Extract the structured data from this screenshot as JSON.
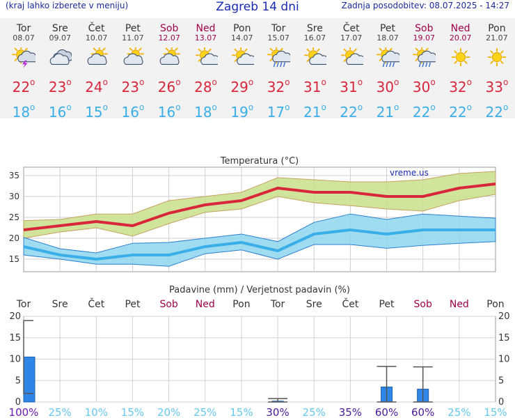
{
  "header": {
    "menu_hint": "(kraj lahko izberete v meniju)",
    "title": "Zagreb 14 dni",
    "updated": "Zadnja posodobitev: 08.07.2025 - 14:27"
  },
  "days": [
    {
      "name": "Tor",
      "date": "08.07",
      "weekend": false,
      "icon": "thunderstorm-sun-icon",
      "tmax": "22",
      "tmin": "18"
    },
    {
      "name": "Sre",
      "date": "09.07",
      "weekend": false,
      "icon": "cloudy-icon",
      "tmax": "23",
      "tmin": "16"
    },
    {
      "name": "Čet",
      "date": "10.07",
      "weekend": false,
      "icon": "partly-cloudy-icon",
      "tmax": "24",
      "tmin": "15"
    },
    {
      "name": "Pet",
      "date": "11.07",
      "weekend": false,
      "icon": "partly-cloudy-icon",
      "tmax": "23",
      "tmin": "16"
    },
    {
      "name": "Sob",
      "date": "12.07",
      "weekend": true,
      "icon": "partly-cloudy-icon",
      "tmax": "26",
      "tmin": "16"
    },
    {
      "name": "Ned",
      "date": "13.07",
      "weekend": true,
      "icon": "mostly-sunny-icon",
      "tmax": "28",
      "tmin": "18"
    },
    {
      "name": "Pon",
      "date": "14.07",
      "weekend": false,
      "icon": "mostly-sunny-icon",
      "tmax": "29",
      "tmin": "19"
    },
    {
      "name": "Tor",
      "date": "15.07",
      "weekend": false,
      "icon": "sun-rain-icon",
      "tmax": "32",
      "tmin": "17"
    },
    {
      "name": "Sre",
      "date": "16.07",
      "weekend": false,
      "icon": "mostly-sunny-icon",
      "tmax": "31",
      "tmin": "21"
    },
    {
      "name": "Čet",
      "date": "17.07",
      "weekend": false,
      "icon": "mostly-sunny-icon",
      "tmax": "31",
      "tmin": "22"
    },
    {
      "name": "Pet",
      "date": "18.07",
      "weekend": false,
      "icon": "sun-rain-icon",
      "tmax": "30",
      "tmin": "21"
    },
    {
      "name": "Sob",
      "date": "19.07",
      "weekend": true,
      "icon": "sun-rain-icon",
      "tmax": "30",
      "tmin": "22"
    },
    {
      "name": "Ned",
      "date": "20.07",
      "weekend": true,
      "icon": "sunny-icon",
      "tmax": "32",
      "tmin": "22"
    },
    {
      "name": "Pon",
      "date": "21.07",
      "weekend": false,
      "icon": "sunny-icon",
      "tmax": "33",
      "tmin": "22"
    }
  ],
  "colors": {
    "max_line": "#d8263a",
    "max_band": "#c8e08a",
    "min_line": "#3aaee8",
    "min_band": "#8ed6ee",
    "bar": "#2f86e6",
    "weekend": "#a0004a",
    "prob_high": "#4a1a9c",
    "prob_low": "#66c8f0"
  },
  "chart_data": [
    {
      "type": "line",
      "title": "Temperatura (°C)",
      "watermark": "vreme.us",
      "ylim": [
        12,
        37
      ],
      "yticks": [
        "15",
        "20",
        "25",
        "30",
        "35"
      ],
      "series": [
        {
          "role": "max",
          "values": [
            22,
            23,
            24,
            23,
            26,
            28,
            29,
            32,
            31,
            31,
            30,
            30,
            32,
            33
          ],
          "upper": [
            24.2,
            24.5,
            25.8,
            25.8,
            29,
            30,
            31,
            34.5,
            34,
            33.5,
            33.5,
            34,
            35.5,
            36
          ],
          "lower": [
            20,
            21.5,
            22.5,
            20.5,
            23.5,
            26.2,
            27,
            30,
            28.5,
            27.8,
            27,
            26.5,
            29,
            30.5
          ]
        },
        {
          "role": "min",
          "values": [
            18,
            16,
            15,
            16,
            16,
            18,
            19,
            17,
            21,
            22,
            21,
            22,
            22,
            22
          ],
          "upper": [
            20.2,
            17.5,
            16.5,
            18.8,
            19,
            20,
            21,
            19.2,
            23.8,
            25.8,
            24.5,
            25.8,
            25.3,
            24.8
          ],
          "lower": [
            16,
            15,
            13.8,
            13.8,
            13.3,
            16.3,
            17.2,
            15,
            18.5,
            18.5,
            17.6,
            18.3,
            18.8,
            19.2
          ]
        }
      ]
    },
    {
      "type": "bar",
      "title": "Padavine (mm) / Verjetnost padavin (%)",
      "categories": [
        "Tor",
        "Sre",
        "Čet",
        "Pet",
        "Sob",
        "Ned",
        "Pon",
        "Tor",
        "Sre",
        "Čet",
        "Pet",
        "Sob",
        "Ned",
        "Pon"
      ],
      "ylim": [
        0,
        20
      ],
      "yticks": [
        "0",
        "5",
        "10",
        "15",
        "20"
      ],
      "values": [
        10.5,
        0,
        0,
        0,
        0,
        0,
        0,
        0.2,
        0,
        0,
        3.5,
        3,
        0,
        0
      ],
      "err_low": [
        2,
        null,
        null,
        null,
        null,
        null,
        null,
        0,
        null,
        null,
        0,
        0,
        null,
        null
      ],
      "err_high": [
        19,
        null,
        null,
        null,
        null,
        null,
        null,
        0.8,
        null,
        null,
        8.3,
        8.2,
        null,
        null
      ],
      "probability": [
        "100%",
        "25%",
        "10%",
        "15%",
        "20%",
        "25%",
        "15%",
        "30%",
        "25%",
        "35%",
        "60%",
        "60%",
        "25%",
        "15%"
      ],
      "prob_values": [
        100,
        25,
        10,
        15,
        20,
        25,
        15,
        30,
        25,
        35,
        60,
        60,
        25,
        15
      ]
    }
  ]
}
